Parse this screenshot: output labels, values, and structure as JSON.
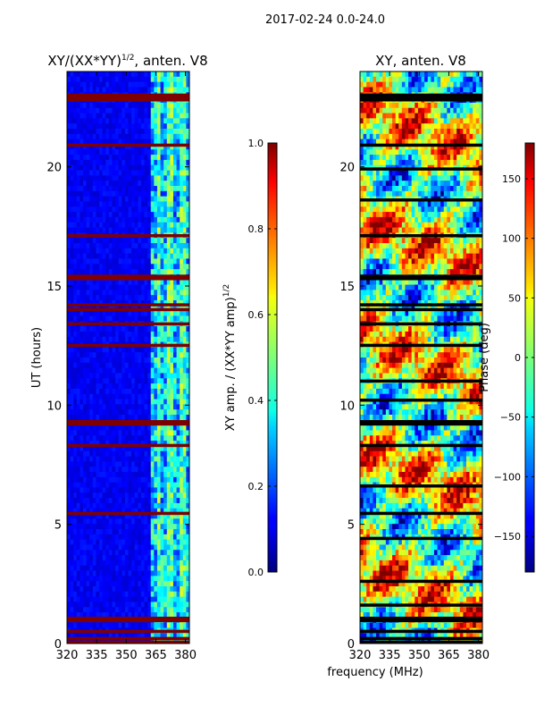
{
  "suptitle": "2017-02-24 0.0-24.0",
  "panel_left": {
    "title_prefix": "XY/(XX*YY)",
    "title_exp": "1/2",
    "title_suffix": ", anten. V8"
  },
  "panel_right": {
    "title": "XY, anten. V8"
  },
  "colorbar_left": {
    "label_prefix": "XY amp. / (XX*YY amp)",
    "label_exp": "1/2"
  },
  "colorbar_right": {
    "label": "Phase (deg)"
  },
  "chart_data": [
    {
      "type": "heatmap",
      "title": "XY/(XX*YY)^1/2, anten. V8",
      "xlabel": "",
      "ylabel": "UT (hours)",
      "xlim": [
        320,
        382
      ],
      "ylim": [
        0,
        24
      ],
      "xticks": [
        320,
        335,
        350,
        365,
        380
      ],
      "yticks": [
        0,
        5,
        10,
        15,
        20
      ],
      "xtick_labels": [
        "320",
        "335",
        "350",
        "365",
        "380"
      ],
      "ytick_labels": [
        "0",
        "5",
        "10",
        "15",
        "20"
      ],
      "colormap": "jet",
      "clim": [
        0.0,
        1.0
      ],
      "colorbar_ticks": [
        0.0,
        0.2,
        0.4,
        0.6,
        0.8,
        1.0
      ],
      "colorbar_tick_labels": [
        "0.0",
        "0.2",
        "0.4",
        "0.6",
        "0.8",
        "1.0"
      ],
      "colorbar_label": "XY amp. / (XX*YY amp)^1/2",
      "flagged_hours": [
        0.05,
        0.2,
        0.5,
        0.95,
        1.05,
        5.45,
        8.3,
        9.2,
        9.3,
        12.5,
        13.4,
        14.0,
        14.2,
        15.3,
        15.4,
        17.1,
        20.9,
        22.8,
        22.9,
        23.0
      ],
      "bright_band_mhz": [
        362,
        382
      ]
    },
    {
      "type": "heatmap",
      "title": "XY, anten. V8",
      "xlabel": "frequency (MHz)",
      "ylabel": "",
      "xlim": [
        320,
        382
      ],
      "ylim": [
        0,
        24
      ],
      "xticks": [
        320,
        335,
        350,
        365,
        380
      ],
      "yticks": [
        0,
        5,
        10,
        15,
        20
      ],
      "xtick_labels": [
        "320",
        "335",
        "350",
        "365",
        "380"
      ],
      "ytick_labels": [
        "0",
        "5",
        "10",
        "15",
        "20"
      ],
      "colormap": "jet",
      "clim": [
        -180,
        180
      ],
      "colorbar_ticks": [
        -150,
        -100,
        -50,
        0,
        50,
        100,
        150
      ],
      "colorbar_tick_labels": [
        "−150",
        "−100",
        "−50",
        "0",
        "50",
        "100",
        "150"
      ],
      "colorbar_label": "Phase (deg)",
      "flagged_hours": [
        0.05,
        0.2,
        0.5,
        0.95,
        1.05,
        1.6,
        2.6,
        4.4,
        5.45,
        6.6,
        8.3,
        9.2,
        9.3,
        10.2,
        11.0,
        12.5,
        13.4,
        14.0,
        14.2,
        15.3,
        15.4,
        17.1,
        18.6,
        19.9,
        20.9,
        22.8,
        22.9,
        23.0
      ]
    }
  ]
}
